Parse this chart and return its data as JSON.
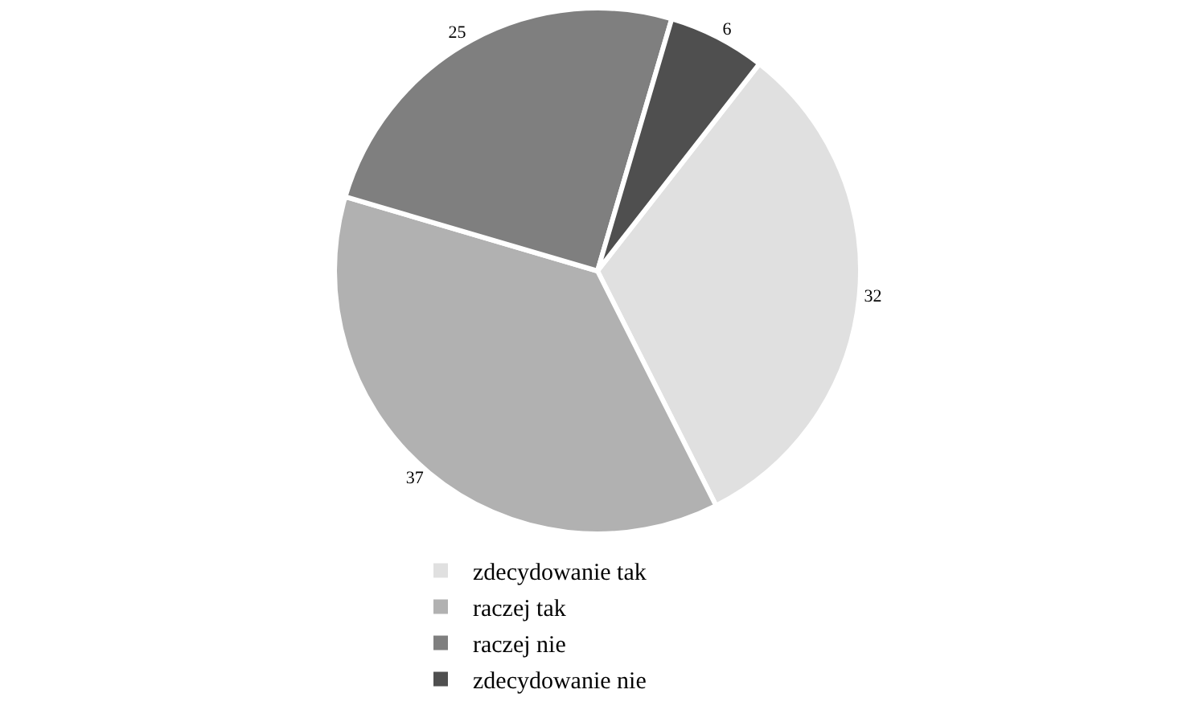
{
  "chart_data": {
    "type": "pie",
    "categories": [
      "zdecydowanie tak",
      "raczej tak",
      "raczej nie",
      "zdecydowanie nie"
    ],
    "values": [
      32,
      37,
      25,
      6
    ],
    "colors": [
      "#e0e0e0",
      "#b1b1b1",
      "#7f7f7f",
      "#4f4f4f"
    ],
    "data_labels": true,
    "legend": "bottom"
  }
}
